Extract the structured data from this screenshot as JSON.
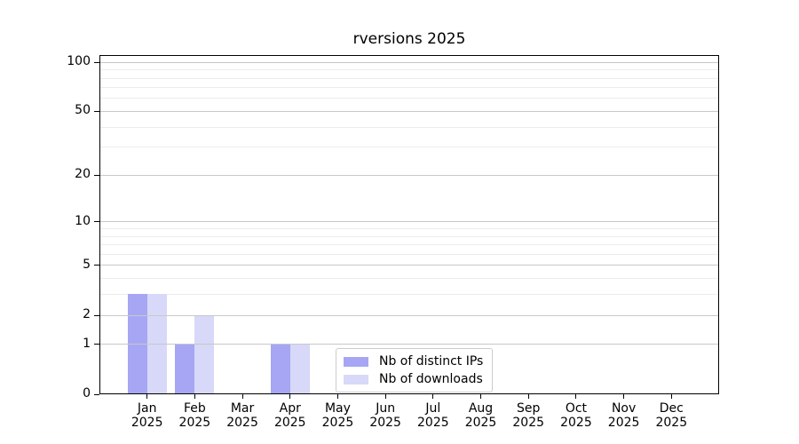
{
  "chart_data": {
    "type": "bar",
    "title": "rversions 2025",
    "categories": [
      "Jan",
      "Feb",
      "Mar",
      "Apr",
      "May",
      "Jun",
      "Jul",
      "Aug",
      "Sep",
      "Oct",
      "Nov",
      "Dec"
    ],
    "category_sublabel": "2025",
    "series": [
      {
        "name": "Nb of distinct IPs",
        "color": "#a6a6f4",
        "values": [
          3,
          1,
          0,
          1,
          0,
          0,
          0,
          0,
          0,
          0,
          0,
          0
        ]
      },
      {
        "name": "Nb of downloads",
        "color": "#d8d8f8",
        "values": [
          3,
          2,
          0,
          1,
          0,
          0,
          0,
          0,
          0,
          0,
          0,
          0
        ]
      }
    ],
    "xlabel": "",
    "ylabel": "",
    "y_scale": "log1p",
    "ylim": [
      0,
      110
    ],
    "y_ticks": [
      0,
      1,
      2,
      5,
      10,
      20,
      50,
      100
    ],
    "y_minor_ticks": [
      3,
      4,
      6,
      7,
      8,
      9,
      30,
      40,
      60,
      70,
      80,
      90
    ],
    "grid": true,
    "legend_position": "inside lower center",
    "colors": {
      "background": "#ffffff",
      "spine": "#000000",
      "text": "#000000",
      "grid_major": "#c8c8c8",
      "grid_minor": "#ececec",
      "legend_border": "#cccccc"
    }
  }
}
